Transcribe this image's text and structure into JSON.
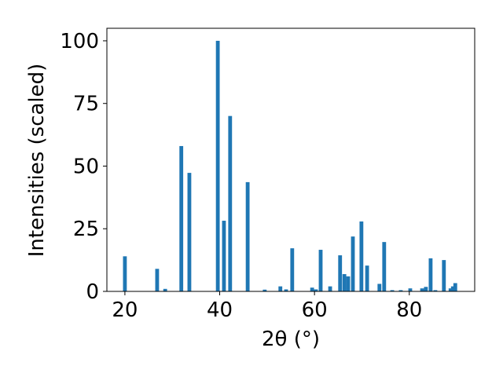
{
  "chart_data": {
    "type": "bar",
    "xlabel": "2θ (°)",
    "ylabel": "Intensities (scaled)",
    "x": [
      20.0,
      26.8,
      28.5,
      31.9,
      33.6,
      39.6,
      40.9,
      42.2,
      45.9,
      49.5,
      52.8,
      54.0,
      55.3,
      59.5,
      60.3,
      61.3,
      63.3,
      65.4,
      66.3,
      67.1,
      68.1,
      69.9,
      71.1,
      73.7,
      74.7,
      76.4,
      78.2,
      80.2,
      82.7,
      83.5,
      84.5,
      85.5,
      87.3,
      88.7,
      89.2,
      89.7
    ],
    "values": [
      14,
      9,
      1,
      58,
      47.3,
      100,
      28.2,
      70,
      43.6,
      0.7,
      2,
      0.8,
      17.2,
      1.5,
      0.8,
      16.6,
      2,
      14.4,
      6.9,
      6,
      21.9,
      27.9,
      10.3,
      3,
      19.7,
      0.5,
      0.5,
      1.2,
      1.2,
      1.8,
      13.2,
      0.5,
      12.5,
      1.2,
      2,
      3.3
    ],
    "color": "#1f77b4",
    "xlim": [
      16.2,
      93.8
    ],
    "xticks": [
      20,
      40,
      60,
      80
    ],
    "ylim": [
      0,
      105
    ],
    "yticks": [
      0,
      25,
      50,
      75,
      100
    ],
    "grid": false
  }
}
